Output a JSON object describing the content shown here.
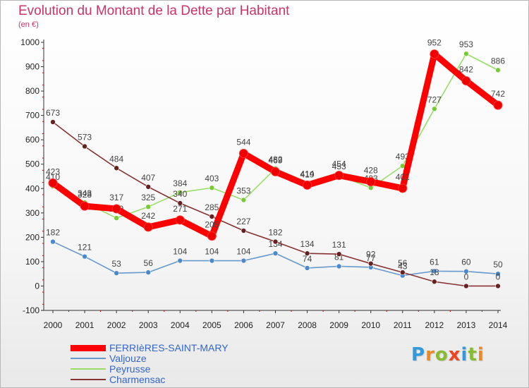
{
  "chart_data": {
    "type": "line",
    "title": "Evolution du Montant de la Dette par Habitant",
    "subtitle": "(en €)",
    "x": [
      "2000",
      "2001",
      "2002",
      "2003",
      "2004",
      "2005",
      "2006",
      "2007",
      "2008",
      "2009",
      "2010",
      "2011",
      "2012",
      "2013",
      "2014"
    ],
    "ylim": [
      -100,
      1000
    ],
    "yticks": [
      -100,
      0,
      100,
      200,
      300,
      400,
      500,
      600,
      700,
      800,
      900,
      1000
    ],
    "grid": false,
    "legend_position": "bottom-left",
    "series": [
      {
        "name": "FERRIèRES-SAINT-MARY",
        "color": "#ff0000",
        "marker": "#ee0000",
        "values": [
          423,
          328,
          317,
          242,
          271,
          205,
          544,
          469,
          414,
          454,
          428,
          401,
          952,
          842,
          742
        ]
      },
      {
        "name": "Valjouze",
        "color": "#6699cc",
        "marker": "#4d88cc",
        "values": [
          182,
          121,
          53,
          56,
          104,
          104,
          104,
          134,
          74,
          81,
          77,
          43,
          61,
          60,
          50
        ]
      },
      {
        "name": "Peyrusse",
        "color": "#99dd66",
        "marker": "#77cc33",
        "values": [
          410,
          343,
          279,
          325,
          384,
          403,
          353,
          482,
          419,
          453,
          403,
          493,
          727,
          953,
          886
        ]
      },
      {
        "name": "Charmensac",
        "color": "#883333",
        "marker": "#662222",
        "values": [
          673,
          573,
          484,
          407,
          340,
          285,
          227,
          182,
          134,
          131,
          92,
          56,
          18,
          0,
          0
        ]
      }
    ]
  },
  "logo": {
    "letters": [
      "P",
      "r",
      "o",
      "x",
      "i",
      "t",
      "i"
    ],
    "colors": [
      "#3399dd",
      "#ee8822",
      "#88bb33",
      "#ee4422",
      "#3399dd",
      "#88bb33",
      "#ee8822"
    ]
  }
}
